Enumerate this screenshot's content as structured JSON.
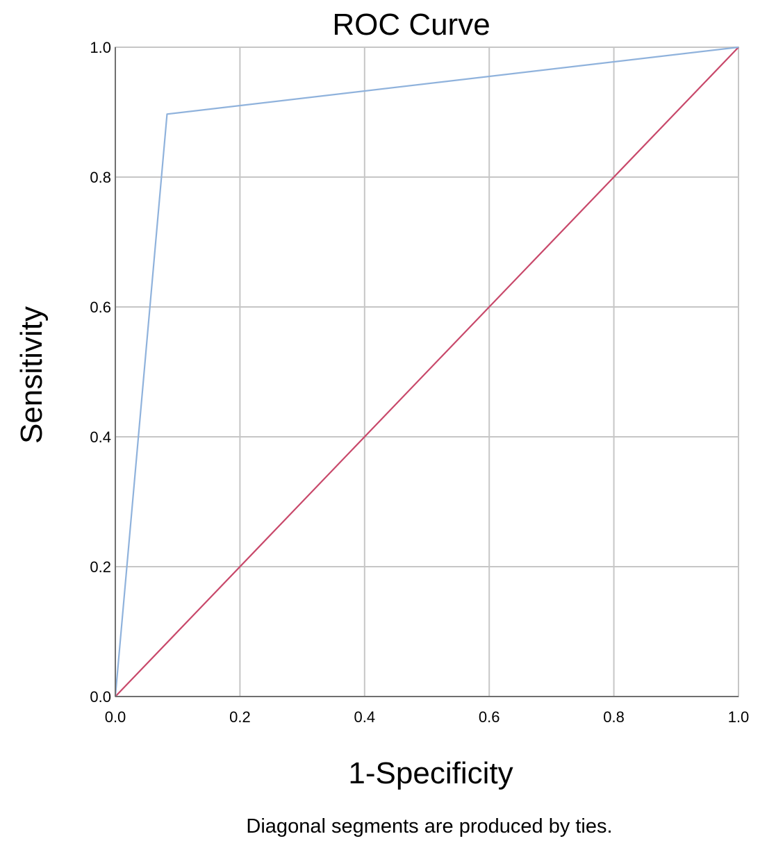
{
  "chart_data": {
    "type": "line",
    "title": "ROC Curve",
    "xlabel": "1-Specificity",
    "ylabel": "Sensitivity",
    "footnote": "Diagonal segments are produced by ties.",
    "xlim": [
      0,
      1
    ],
    "ylim": [
      0,
      1
    ],
    "grid": true,
    "x_ticks": [
      0.0,
      0.2,
      0.4,
      0.6,
      0.8,
      1.0
    ],
    "y_ticks": [
      0.0,
      0.2,
      0.4,
      0.6,
      0.8,
      1.0
    ],
    "x_tick_labels": [
      "0.0",
      "0.2",
      "0.4",
      "0.6",
      "0.8",
      "1.0"
    ],
    "y_tick_labels": [
      "0.0",
      "0.2",
      "0.4",
      "0.6",
      "0.8",
      "1.0"
    ],
    "series": [
      {
        "color": "#8fb2dc",
        "x": [
          0.0,
          0.083,
          1.0
        ],
        "y": [
          0.0,
          0.897,
          1.0
        ]
      },
      {
        "color": "#c8486a",
        "x": [
          0.0,
          1.0
        ],
        "y": [
          0.0,
          1.0
        ]
      }
    ]
  }
}
